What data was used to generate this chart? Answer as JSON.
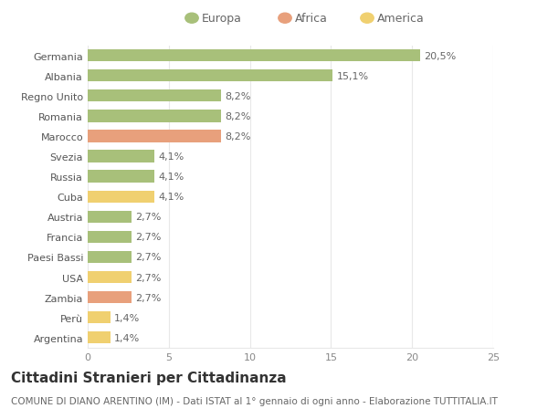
{
  "countries": [
    "Germania",
    "Albania",
    "Regno Unito",
    "Romania",
    "Marocco",
    "Svezia",
    "Russia",
    "Cuba",
    "Austria",
    "Francia",
    "Paesi Bassi",
    "USA",
    "Zambia",
    "Perù",
    "Argentina"
  ],
  "values": [
    20.5,
    15.1,
    8.2,
    8.2,
    8.2,
    4.1,
    4.1,
    4.1,
    2.7,
    2.7,
    2.7,
    2.7,
    2.7,
    1.4,
    1.4
  ],
  "labels": [
    "20,5%",
    "15,1%",
    "8,2%",
    "8,2%",
    "8,2%",
    "4,1%",
    "4,1%",
    "4,1%",
    "2,7%",
    "2,7%",
    "2,7%",
    "2,7%",
    "2,7%",
    "1,4%",
    "1,4%"
  ],
  "categories": [
    "Europa",
    "Africa",
    "America"
  ],
  "continent": [
    "Europa",
    "Europa",
    "Europa",
    "Europa",
    "Africa",
    "Europa",
    "Europa",
    "America",
    "Europa",
    "Europa",
    "Europa",
    "America",
    "Africa",
    "America",
    "America"
  ],
  "colors": {
    "Europa": "#a8c07a",
    "Africa": "#e8a07c",
    "America": "#f0d070"
  },
  "title": "Cittadini Stranieri per Cittadinanza",
  "subtitle": "COMUNE DI DIANO ARENTINO (IM) - Dati ISTAT al 1° gennaio di ogni anno - Elaborazione TUTTITALIA.IT",
  "xlim": [
    0,
    25
  ],
  "xticks": [
    0,
    5,
    10,
    15,
    20,
    25
  ],
  "bg_color": "#ffffff",
  "grid_color": "#e8e8e8",
  "bar_height": 0.6,
  "label_fontsize": 8,
  "title_fontsize": 11,
  "subtitle_fontsize": 7.5,
  "tick_fontsize": 8,
  "legend_fontsize": 9
}
